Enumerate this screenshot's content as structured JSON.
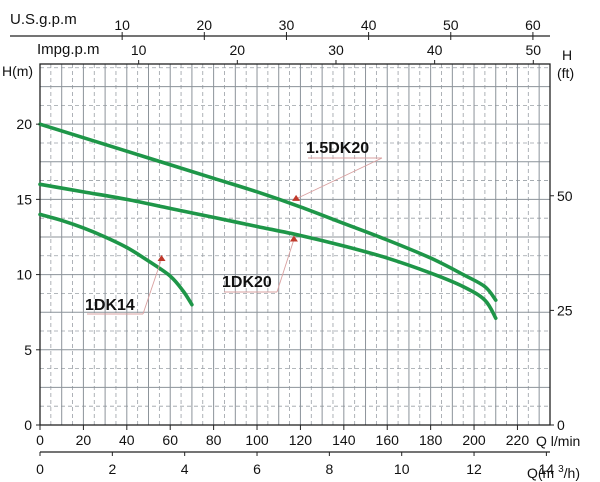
{
  "chart_data": {
    "type": "line",
    "title": "",
    "xlabel": "Q l/min",
    "ylabel": "H(m)",
    "ylabel_right": "H",
    "ylabel_right_unit": "(ft)",
    "xlim": [
      0,
      235
    ],
    "ylim": [
      0,
      24
    ],
    "x_ticks": [
      0,
      20,
      40,
      60,
      80,
      100,
      120,
      140,
      160,
      180,
      200,
      220
    ],
    "y_ticks": [
      0,
      5,
      10,
      15,
      20
    ],
    "right_axis": {
      "ticks": [
        0,
        25,
        50
      ]
    },
    "top_axes": [
      {
        "label": "U.S.g.p.m",
        "ticks": [
          10,
          20,
          30,
          40,
          50,
          60
        ]
      },
      {
        "label": "Impg.p.m",
        "ticks": [
          10,
          20,
          30,
          40,
          50
        ]
      }
    ],
    "bottom_axis2": {
      "label": "Q(m3/h)",
      "ticks": [
        0,
        2,
        4,
        6,
        8,
        10,
        12,
        14
      ]
    },
    "grid": true,
    "series": [
      {
        "name": "1.5DK20",
        "color": "#1e9648",
        "x": [
          0,
          20,
          40,
          60,
          80,
          100,
          120,
          140,
          160,
          180,
          195,
          205,
          210
        ],
        "y": [
          20.0,
          19.1,
          18.2,
          17.3,
          16.4,
          15.5,
          14.5,
          13.4,
          12.3,
          11.1,
          10.0,
          9.2,
          8.3
        ]
      },
      {
        "name": "1DK20",
        "color": "#1e9648",
        "x": [
          0,
          20,
          40,
          60,
          80,
          100,
          120,
          140,
          160,
          180,
          195,
          205,
          210
        ],
        "y": [
          16.0,
          15.5,
          15.0,
          14.4,
          13.8,
          13.2,
          12.6,
          11.9,
          11.1,
          10.1,
          9.2,
          8.3,
          7.1
        ]
      },
      {
        "name": "1DK14",
        "color": "#1e9648",
        "x": [
          0,
          10,
          20,
          30,
          40,
          50,
          60,
          66,
          70
        ],
        "y": [
          14.0,
          13.6,
          13.1,
          12.5,
          11.8,
          10.9,
          9.9,
          8.9,
          8.0
        ]
      }
    ],
    "annotations": [
      {
        "text": "1.5DK20",
        "x": 118,
        "y": 15.3
      },
      {
        "text": "1DK20",
        "x": 117,
        "y": 12.6
      },
      {
        "text": "1DK14",
        "x": 56,
        "y": 11.3
      }
    ]
  }
}
